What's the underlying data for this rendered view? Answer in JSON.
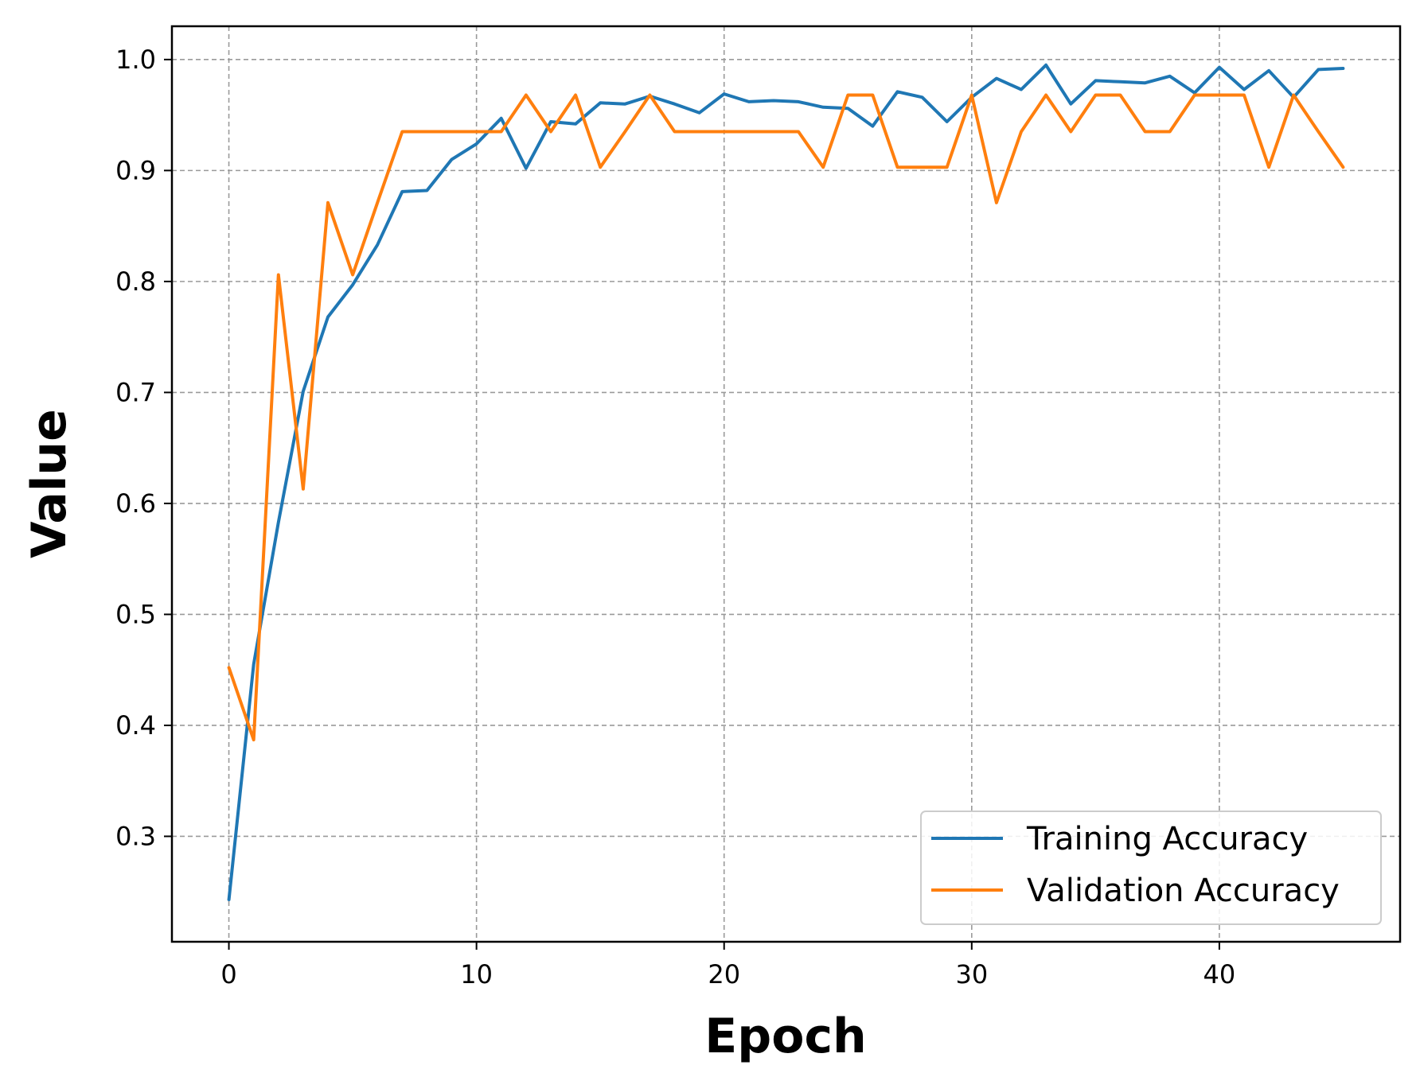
{
  "chart_data": {
    "type": "line",
    "title": "",
    "xlabel": "Epoch",
    "ylabel": "Value",
    "xlim": [
      -2.3,
      47.3
    ],
    "ylim": [
      0.205,
      1.03
    ],
    "xticks": [
      0,
      10,
      20,
      30,
      40
    ],
    "xtick_labels": [
      "0",
      "10",
      "20",
      "30",
      "40"
    ],
    "yticks": [
      0.3,
      0.4,
      0.5,
      0.6,
      0.7,
      0.8,
      0.9,
      1.0
    ],
    "ytick_labels": [
      "0.3",
      "0.4",
      "0.5",
      "0.6",
      "0.7",
      "0.8",
      "0.9",
      "1.0"
    ],
    "grid": true,
    "legend_position": "lower-right",
    "x": [
      0,
      1,
      2,
      3,
      4,
      5,
      6,
      7,
      8,
      9,
      10,
      11,
      12,
      13,
      14,
      15,
      16,
      17,
      18,
      19,
      20,
      21,
      22,
      23,
      24,
      25,
      26,
      27,
      28,
      29,
      30,
      31,
      32,
      33,
      34,
      35,
      36,
      37,
      38,
      39,
      40,
      41,
      42,
      43,
      44,
      45
    ],
    "series": [
      {
        "name": "Training Accuracy",
        "color": "#1f77b4",
        "values": [
          0.243,
          0.455,
          0.583,
          0.701,
          0.768,
          0.797,
          0.833,
          0.881,
          0.882,
          0.91,
          0.924,
          0.947,
          0.902,
          0.944,
          0.942,
          0.961,
          0.96,
          0.967,
          0.96,
          0.952,
          0.969,
          0.962,
          0.963,
          0.962,
          0.957,
          0.956,
          0.94,
          0.971,
          0.966,
          0.944,
          0.966,
          0.983,
          0.973,
          0.995,
          0.96,
          0.981,
          0.98,
          0.979,
          0.985,
          0.97,
          0.993,
          0.973,
          0.99,
          0.966,
          0.991,
          0.992
        ]
      },
      {
        "name": "Validation Accuracy",
        "color": "#ff7f0e",
        "values": [
          0.452,
          0.387,
          0.806,
          0.613,
          0.871,
          0.806,
          0.871,
          0.935,
          0.935,
          0.935,
          0.935,
          0.935,
          0.968,
          0.935,
          0.968,
          0.903,
          0.935,
          0.968,
          0.935,
          0.935,
          0.935,
          0.935,
          0.935,
          0.935,
          0.903,
          0.968,
          0.968,
          0.903,
          0.903,
          0.903,
          0.968,
          0.871,
          0.935,
          0.968,
          0.935,
          0.968,
          0.968,
          0.935,
          0.935,
          0.968,
          0.968,
          0.968,
          0.903,
          0.968,
          0.935,
          0.903
        ]
      }
    ]
  }
}
